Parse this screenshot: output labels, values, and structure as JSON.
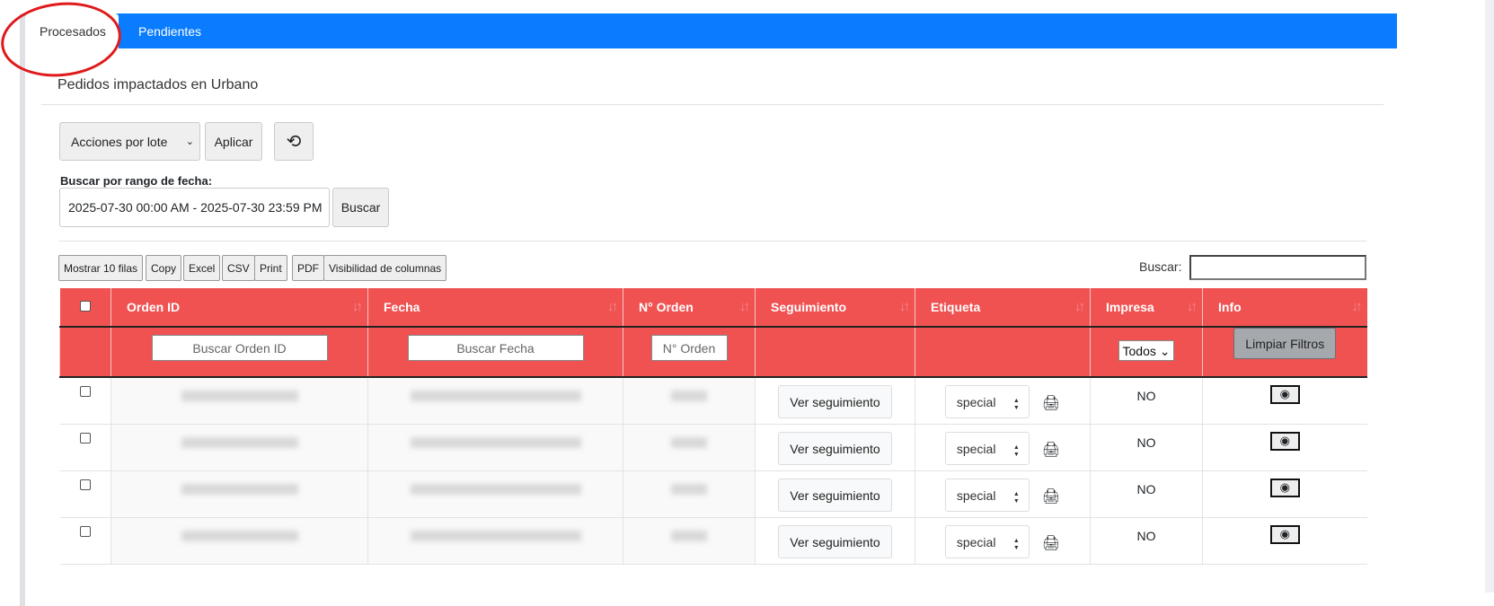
{
  "tabs": [
    {
      "label": "Procesados",
      "active": true
    },
    {
      "label": "Pendientes",
      "active": false
    }
  ],
  "colors": {
    "tab_bar": "#0a7cff",
    "table_header": "#f05252",
    "annotation_circle": "#e0191b"
  },
  "subtitle": "Pedidos impactados en Urbano",
  "batch": {
    "select_value": "Acciones por lote",
    "apply_label": "Aplicar",
    "history_icon": "history-icon"
  },
  "date_filter": {
    "label": "Buscar por rango de fecha:",
    "value": "2025-07-30 00:00 AM - 2025-07-30 23:59 PM",
    "search_label": "Buscar"
  },
  "export_buttons": [
    "Mostrar 10 filas",
    "Copy",
    "Excel",
    "CSV",
    "Print",
    "PDF",
    "Visibilidad de columnas"
  ],
  "search": {
    "label": "Buscar:",
    "value": ""
  },
  "table": {
    "columns": [
      "Orden ID",
      "Fecha",
      "N° Orden",
      "Seguimiento",
      "Etiqueta",
      "Impresa",
      "Info"
    ],
    "filters": {
      "orden_id_placeholder": "Buscar Orden ID",
      "fecha_placeholder": "Buscar Fecha",
      "n_orden_placeholder": "N° Orden",
      "impresa_value": "Todos",
      "clear_label": "Limpiar Filtros"
    },
    "rows": [
      {
        "seguimiento": "Ver seguimiento",
        "etiqueta": "special",
        "impresa": "NO"
      },
      {
        "seguimiento": "Ver seguimiento",
        "etiqueta": "special",
        "impresa": "NO"
      },
      {
        "seguimiento": "Ver seguimiento",
        "etiqueta": "special",
        "impresa": "NO"
      },
      {
        "seguimiento": "Ver seguimiento",
        "etiqueta": "special",
        "impresa": "NO"
      }
    ]
  }
}
